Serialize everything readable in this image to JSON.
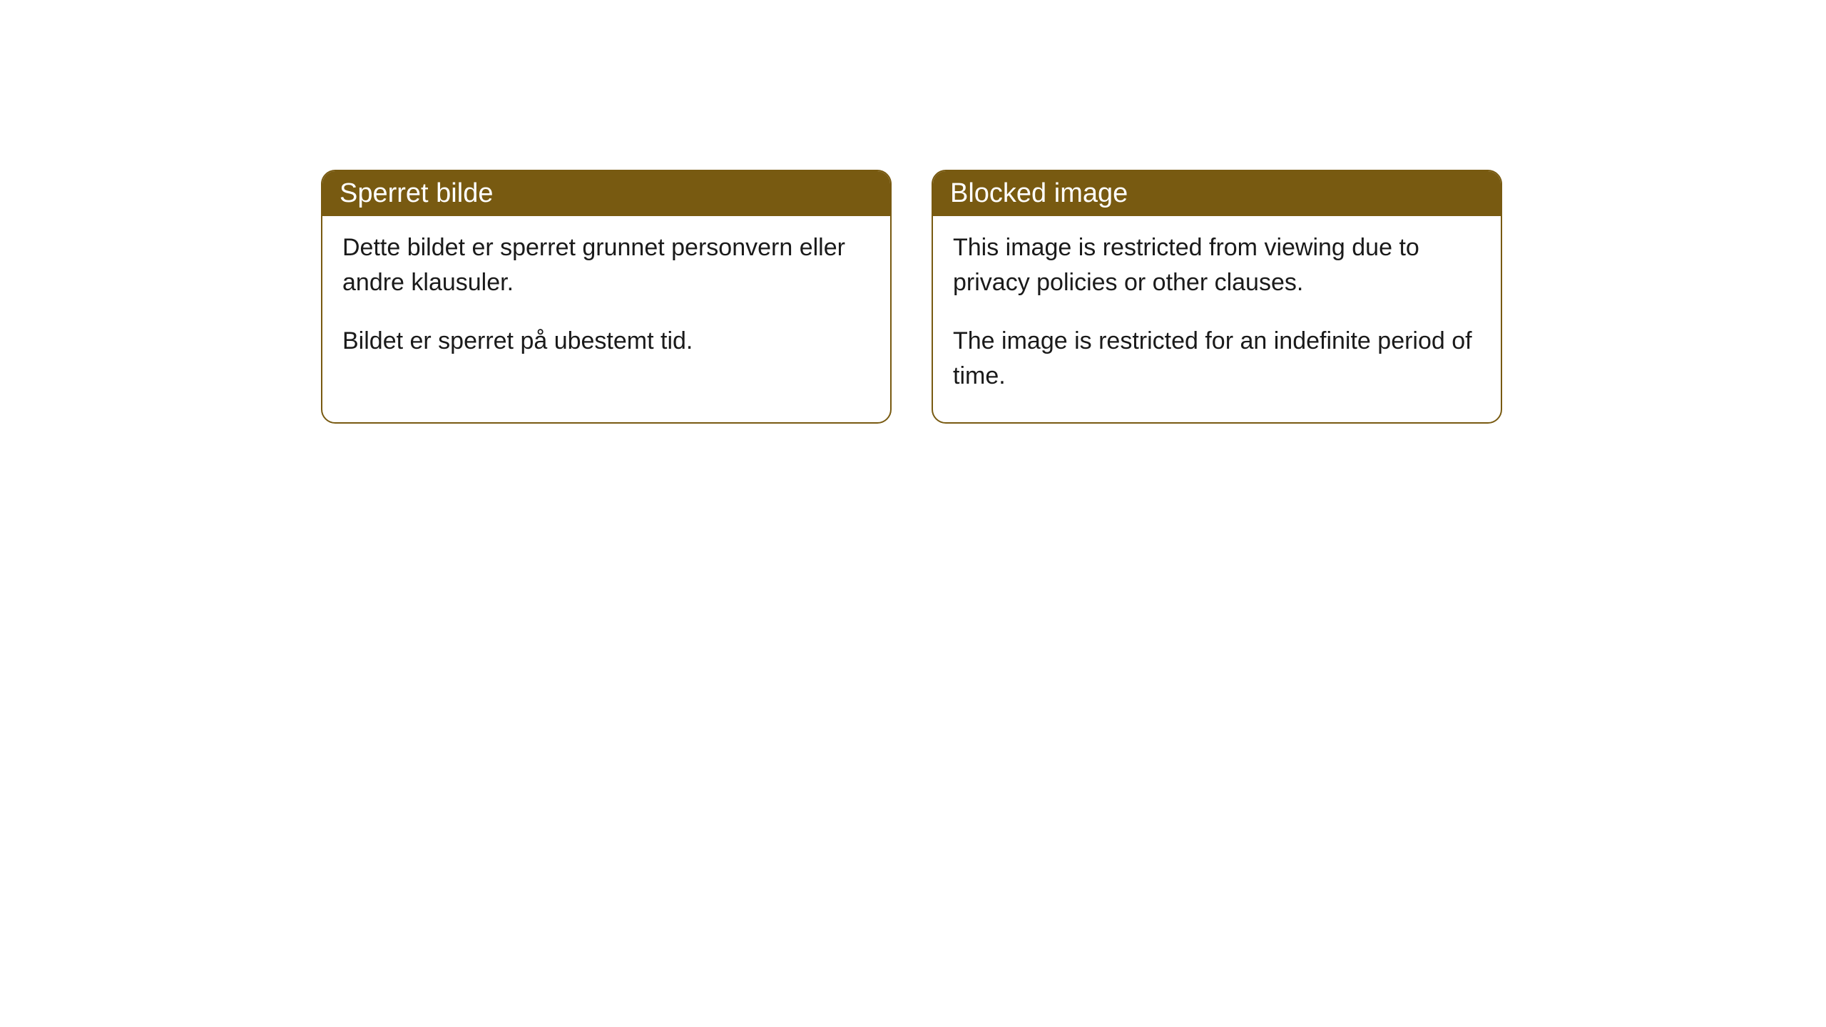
{
  "cards": [
    {
      "title": "Sperret bilde",
      "paragraph1": "Dette bildet er sperret grunnet personvern eller andre klausuler.",
      "paragraph2": "Bildet er sperret på ubestemt tid."
    },
    {
      "title": "Blocked image",
      "paragraph1": "This image is restricted from viewing due to privacy policies or other clauses.",
      "paragraph2": "The image is restricted for an indefinite period of time."
    }
  ],
  "style": {
    "header_bg_color": "#785a11",
    "header_text_color": "#ffffff",
    "border_color": "#785a11",
    "body_bg_color": "#ffffff",
    "body_text_color": "#1a1a1a",
    "border_radius": 20,
    "header_fontsize": 38,
    "body_fontsize": 34
  }
}
